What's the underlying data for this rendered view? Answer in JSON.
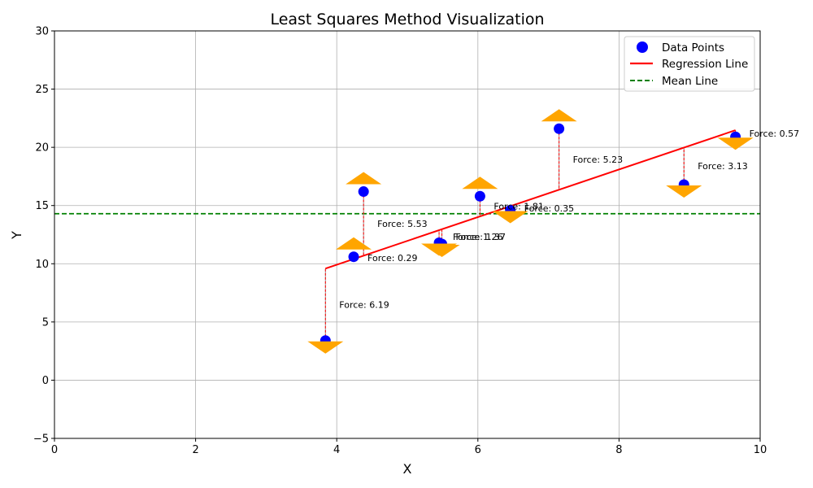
{
  "chart_data": {
    "type": "scatter",
    "title": "Least Squares Method Visualization",
    "xlabel": "X",
    "ylabel": "Y",
    "xlim": [
      0,
      10
    ],
    "ylim": [
      -5,
      30
    ],
    "xticks": [
      0,
      2,
      4,
      6,
      8,
      10
    ],
    "yticks": [
      -5,
      0,
      5,
      10,
      15,
      20,
      25,
      30
    ],
    "grid": true,
    "legend_position": "top-right",
    "series": [
      {
        "name": "Data Points",
        "kind": "scatter",
        "color": "#0000ff",
        "points": [
          {
            "x": 3.84,
            "y": 3.4,
            "force": "Force: 6.19"
          },
          {
            "x": 4.24,
            "y": 10.6,
            "force": "Force: 0.29"
          },
          {
            "x": 4.38,
            "y": 16.2,
            "force": "Force: 5.53"
          },
          {
            "x": 5.49,
            "y": 11.7,
            "force": "Force: 1.37"
          },
          {
            "x": 5.45,
            "y": 11.8,
            "force": "Force: 1.26"
          },
          {
            "x": 6.03,
            "y": 15.8,
            "force": "Force: 1.81"
          },
          {
            "x": 6.46,
            "y": 14.6,
            "force": "Force: 0.35"
          },
          {
            "x": 7.15,
            "y": 21.6,
            "force": "Force: 5.23"
          },
          {
            "x": 8.92,
            "y": 16.8,
            "force": "Force: 3.13"
          },
          {
            "x": 9.65,
            "y": 20.9,
            "force": "Force: 0.57"
          }
        ]
      },
      {
        "name": "Regression Line",
        "kind": "line",
        "color": "#ff0000",
        "x": [
          3.84,
          9.65
        ],
        "y": [
          9.59,
          21.47
        ]
      },
      {
        "name": "Mean Line",
        "kind": "hline",
        "color": "#008000",
        "y": 14.3
      }
    ],
    "force_arrow_color": "#ffa500"
  }
}
